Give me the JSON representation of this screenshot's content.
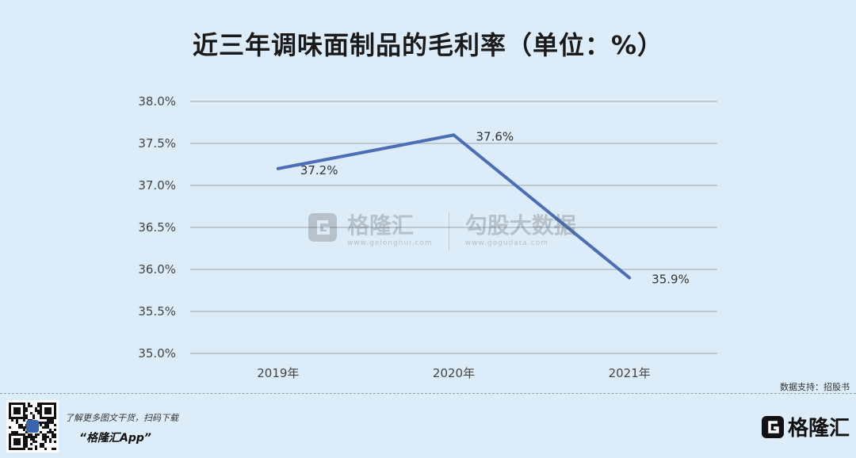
{
  "title": "近三年调味面制品的毛利率（单位：%）",
  "chart_data": {
    "type": "line",
    "categories": [
      "2019年",
      "2020年",
      "2021年"
    ],
    "series": [
      {
        "values": [
          37.2,
          37.6,
          35.9
        ],
        "labels": [
          "37.2%",
          "37.6%",
          "35.9%"
        ]
      }
    ],
    "ylim": [
      35.0,
      38.0
    ],
    "yticks": [
      "35.0%",
      "35.5%",
      "36.0%",
      "36.5%",
      "37.0%",
      "37.5%",
      "38.0%"
    ],
    "grid": true,
    "line_color": "#4a6fb5"
  },
  "watermark": {
    "brand": "格隆汇",
    "brand_sub": "www.gelonghui.com",
    "data_brand": "勾股大数据",
    "data_url": "www.gogudata.com"
  },
  "source": "数据支持：招股书",
  "footer": {
    "promo_line": "了解更多图文干货，扫码下载",
    "app_name": "“格隆汇App”",
    "logo_text": "格隆汇"
  }
}
